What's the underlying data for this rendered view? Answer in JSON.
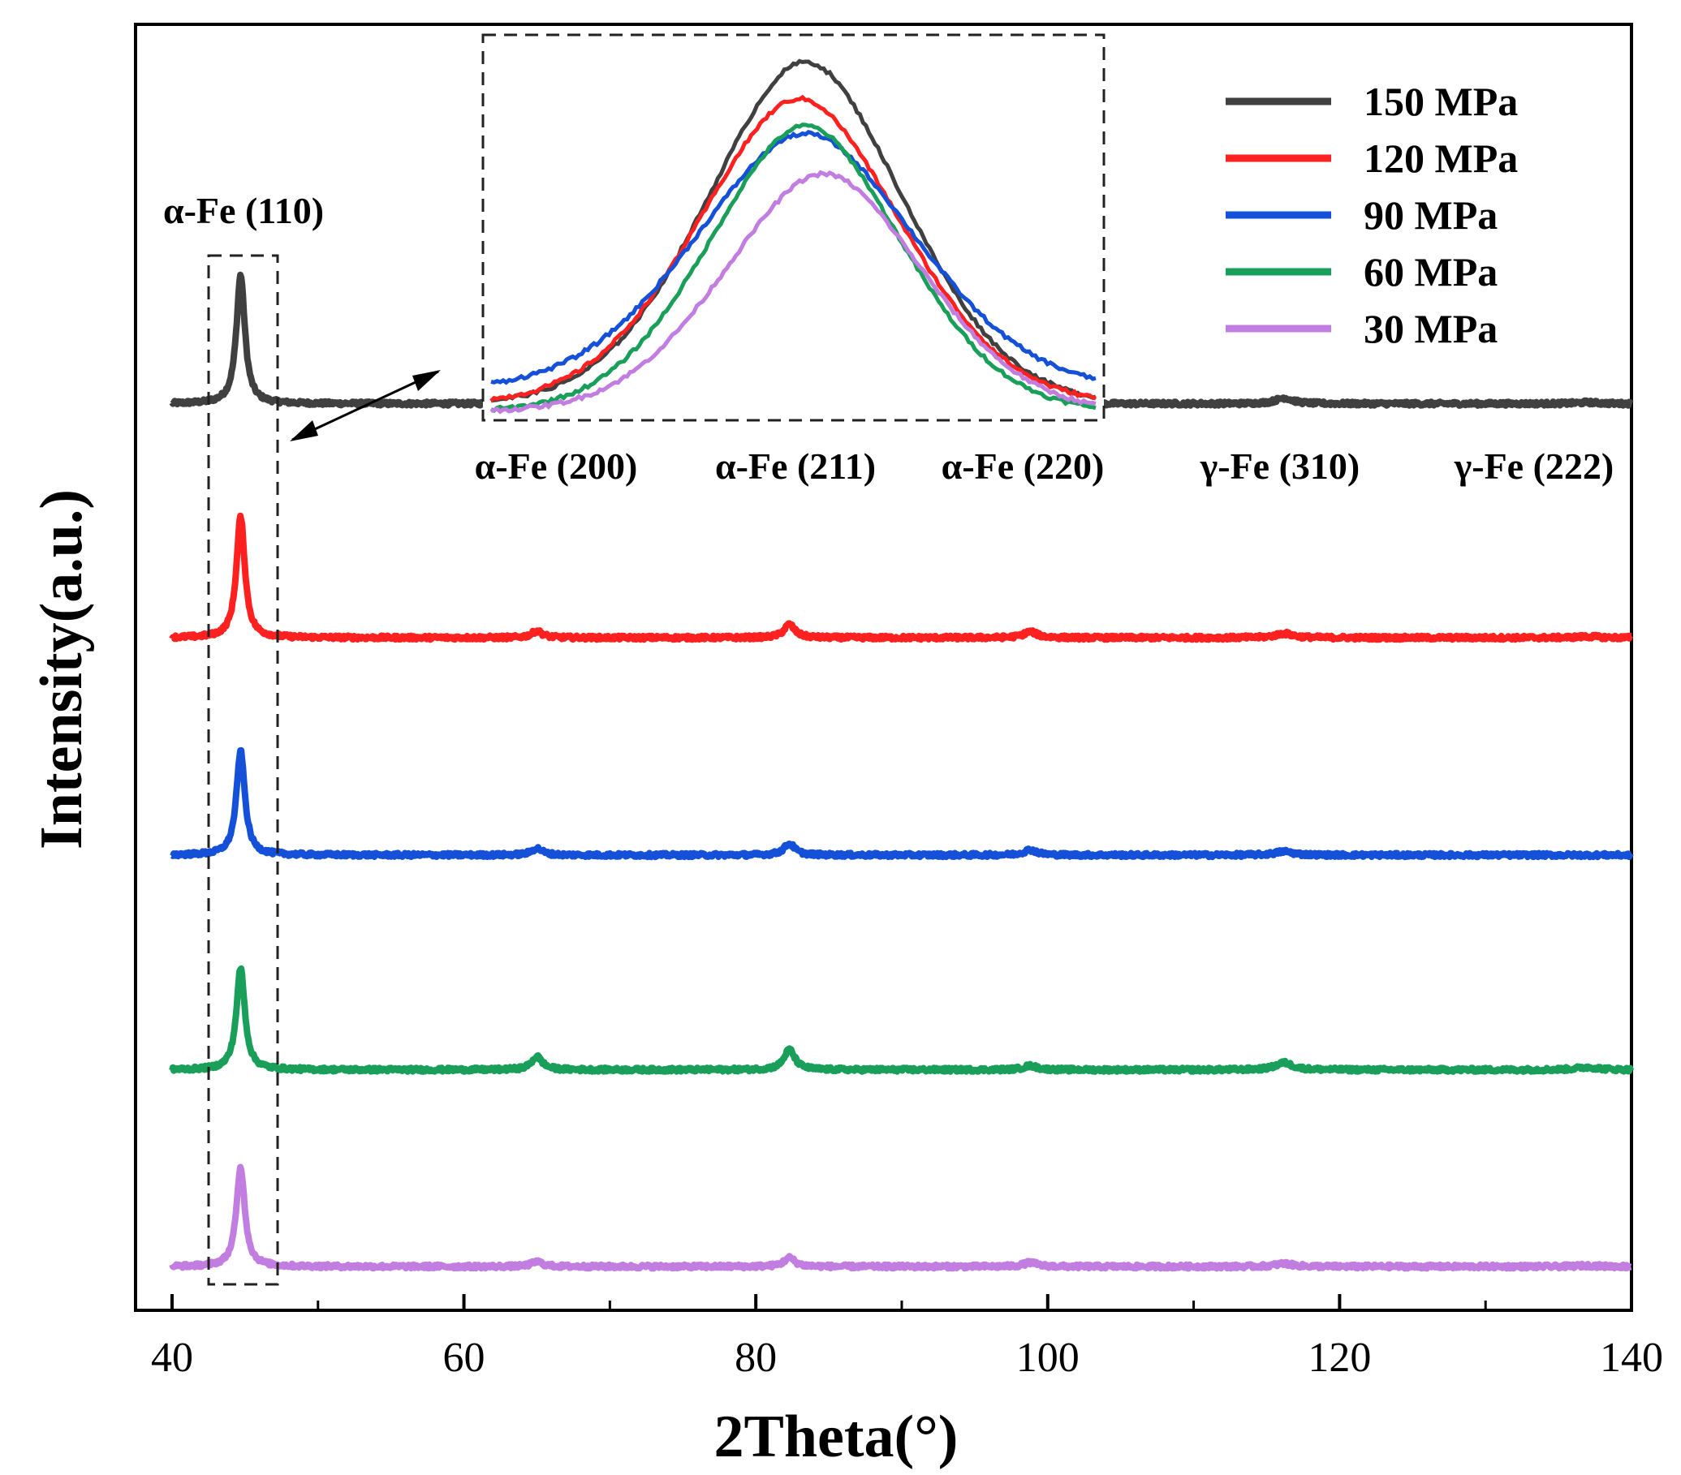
{
  "chart_data": {
    "type": "line",
    "title": "",
    "xlabel": "2Theta(°)",
    "ylabel": "Intensity(a.u.)",
    "xlim": [
      37.5,
      140
    ],
    "xticks": [
      40,
      60,
      80,
      100,
      120,
      140
    ],
    "x_minor_step": 10,
    "y_tick_labels_shown": false,
    "grid": false,
    "legend_position": "top-right",
    "series": [
      {
        "name": "150 MPa",
        "color": "#404040",
        "baseline": 0.705,
        "main_peak_height": 0.1
      },
      {
        "name": "120 MPa",
        "color": "#ff2020",
        "baseline": 0.523,
        "main_peak_height": 0.094
      },
      {
        "name": "90 MPa",
        "color": "#1450d8",
        "baseline": 0.354,
        "main_peak_height": 0.081
      },
      {
        "name": "60 MPa",
        "color": "#1a9f5a",
        "baseline": 0.187,
        "main_peak_height": 0.079
      },
      {
        "name": "30 MPa",
        "color": "#c17de0",
        "baseline": 0.034,
        "main_peak_height": 0.077
      }
    ],
    "peaks": [
      {
        "label": "α-Fe (110)",
        "x": 44.7,
        "width": 0.35,
        "heights": [
          1.0,
          1.0,
          1.0,
          1.0,
          1.0
        ]
      },
      {
        "label": "α-Fe (200)",
        "x": 65.0,
        "width": 0.45,
        "heights": [
          0.06,
          0.055,
          0.065,
          0.13,
          0.05
        ]
      },
      {
        "label": "α-Fe (211)",
        "x": 82.3,
        "width": 0.45,
        "heights": [
          0.12,
          0.11,
          0.11,
          0.2,
          0.09
        ]
      },
      {
        "label": "α-Fe (220)",
        "x": 98.8,
        "width": 0.55,
        "heights": [
          0.045,
          0.05,
          0.05,
          0.04,
          0.04
        ]
      },
      {
        "label": "γ-Fe (310)",
        "x": 116.2,
        "width": 0.7,
        "heights": [
          0.045,
          0.035,
          0.035,
          0.07,
          0.03
        ]
      },
      {
        "label": "γ-Fe (222)",
        "x": 137.0,
        "width": 0.9,
        "heights": [
          0.01,
          0.01,
          0.0,
          0.025,
          0.01
        ]
      }
    ],
    "inset": {
      "description": "zoom of α-Fe (110) peak",
      "series_curves": [
        {
          "name": "150 MPa",
          "peak_rel": 0.95,
          "center_rel": 0.52,
          "width_rel": 0.17,
          "tail_rel": 0.02
        },
        {
          "name": "120 MPa",
          "peak_rel": 0.85,
          "center_rel": 0.51,
          "width_rel": 0.175,
          "tail_rel": 0.02
        },
        {
          "name": "90 MPa",
          "peak_rel": 0.75,
          "center_rel": 0.52,
          "width_rel": 0.19,
          "tail_rel": 0.06
        },
        {
          "name": "60 MPa",
          "peak_rel": 0.78,
          "center_rel": 0.52,
          "width_rel": 0.165,
          "tail_rel": 0.0
        },
        {
          "name": "30 MPa",
          "peak_rel": 0.65,
          "center_rel": 0.55,
          "width_rel": 0.17,
          "tail_rel": 0.0
        }
      ]
    }
  }
}
